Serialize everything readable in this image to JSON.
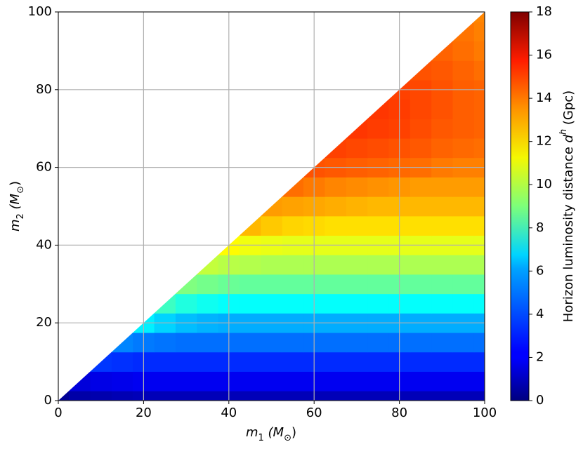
{
  "chart_data": {
    "type": "heatmap",
    "xlabel": [
      "m",
      "1",
      " (M",
      "⊙",
      ")"
    ],
    "ylabel": [
      "m",
      "2",
      " (M",
      "⊙",
      ")"
    ],
    "colorbar_label": [
      "Horizon luminosity distance ",
      "d",
      "h",
      " (Gpc)"
    ],
    "colormap": "jet",
    "grid": true,
    "xlim": [
      0,
      100
    ],
    "xticks": [
      0,
      20,
      40,
      60,
      80,
      100
    ],
    "ylim": [
      0,
      100
    ],
    "yticks": [
      0,
      20,
      40,
      60,
      80,
      100
    ],
    "clim": [
      0,
      18
    ],
    "cticks": [
      0,
      2,
      4,
      6,
      8,
      10,
      12,
      14,
      16,
      18
    ],
    "x": [
      0,
      5,
      10,
      15,
      20,
      25,
      30,
      35,
      40,
      45,
      50,
      55,
      60,
      65,
      70,
      75,
      80,
      85,
      90,
      95,
      100
    ],
    "y": [
      0,
      5,
      10,
      15,
      20,
      25,
      30,
      35,
      40,
      45,
      50,
      55,
      60,
      65,
      70,
      75,
      80,
      85,
      90,
      95,
      100
    ],
    "values": [
      [
        0.4,
        0.7,
        0.8,
        0.9,
        1.0,
        1.0,
        1.0,
        1.0,
        1.0,
        1.0,
        1.0,
        1.0,
        1.0,
        1.0,
        1.0,
        1.0,
        1.0,
        1.0,
        1.0,
        1.0,
        1.0
      ],
      [
        null,
        1.6,
        1.8,
        1.9,
        2.0,
        2.0,
        2.0,
        2.0,
        2.0,
        2.0,
        2.0,
        2.0,
        2.0,
        2.0,
        2.0,
        2.0,
        2.0,
        2.0,
        2.0,
        2.0,
        2.0
      ],
      [
        null,
        null,
        3.2,
        3.1,
        3.0,
        3.0,
        3.0,
        3.0,
        3.0,
        3.0,
        3.0,
        3.0,
        3.0,
        3.0,
        3.0,
        3.0,
        3.0,
        3.0,
        3.0,
        3.0,
        3.0
      ],
      [
        null,
        null,
        null,
        4.6,
        4.4,
        4.3,
        4.2,
        4.2,
        4.2,
        4.2,
        4.2,
        4.2,
        4.2,
        4.2,
        4.2,
        4.2,
        4.2,
        4.2,
        4.2,
        4.2,
        4.2
      ],
      [
        null,
        null,
        null,
        null,
        6.5,
        6.0,
        5.6,
        5.4,
        5.3,
        5.3,
        5.3,
        5.3,
        5.3,
        5.3,
        5.3,
        5.3,
        5.3,
        5.3,
        5.3,
        5.3,
        5.3
      ],
      [
        null,
        null,
        null,
        null,
        null,
        7.8,
        7.3,
        7.0,
        6.8,
        6.8,
        6.8,
        6.8,
        6.8,
        6.8,
        6.8,
        6.8,
        6.8,
        6.8,
        6.8,
        6.8,
        6.8
      ],
      [
        null,
        null,
        null,
        null,
        null,
        null,
        9.0,
        8.8,
        8.6,
        8.5,
        8.5,
        8.5,
        8.5,
        8.5,
        8.5,
        8.5,
        8.5,
        8.5,
        8.5,
        8.5,
        8.5
      ],
      [
        null,
        null,
        null,
        null,
        null,
        null,
        null,
        10.2,
        10.0,
        9.9,
        9.8,
        9.8,
        9.8,
        9.8,
        9.8,
        9.8,
        9.8,
        9.8,
        9.8,
        9.8,
        9.8
      ],
      [
        null,
        null,
        null,
        null,
        null,
        null,
        null,
        null,
        11.3,
        11.0,
        10.9,
        10.8,
        10.8,
        10.8,
        10.8,
        10.8,
        10.8,
        10.8,
        10.8,
        10.8,
        10.8
      ],
      [
        null,
        null,
        null,
        null,
        null,
        null,
        null,
        null,
        null,
        12.5,
        12.2,
        12.0,
        11.9,
        11.8,
        11.8,
        11.8,
        11.8,
        11.8,
        11.8,
        11.8,
        11.8
      ],
      [
        null,
        null,
        null,
        null,
        null,
        null,
        null,
        null,
        null,
        null,
        13.0,
        12.9,
        12.8,
        12.7,
        12.6,
        12.5,
        12.5,
        12.5,
        12.5,
        12.5,
        12.5
      ],
      [
        null,
        null,
        null,
        null,
        null,
        null,
        null,
        null,
        null,
        null,
        null,
        13.8,
        13.6,
        13.4,
        13.3,
        13.2,
        13.1,
        13.0,
        13.0,
        13.0,
        13.0
      ],
      [
        null,
        null,
        null,
        null,
        null,
        null,
        null,
        null,
        null,
        null,
        null,
        null,
        14.3,
        14.2,
        14.1,
        14.0,
        13.9,
        13.8,
        13.6,
        13.5,
        13.5
      ],
      [
        null,
        null,
        null,
        null,
        null,
        null,
        null,
        null,
        null,
        null,
        null,
        null,
        null,
        14.6,
        14.5,
        14.4,
        14.3,
        14.2,
        14.0,
        13.9,
        13.8
      ],
      [
        null,
        null,
        null,
        null,
        null,
        null,
        null,
        null,
        null,
        null,
        null,
        null,
        null,
        null,
        14.8,
        14.7,
        14.6,
        14.4,
        14.2,
        14.1,
        14.0
      ],
      [
        null,
        null,
        null,
        null,
        null,
        null,
        null,
        null,
        null,
        null,
        null,
        null,
        null,
        null,
        null,
        14.8,
        14.7,
        14.5,
        14.3,
        14.1,
        14.0
      ],
      [
        null,
        null,
        null,
        null,
        null,
        null,
        null,
        null,
        null,
        null,
        null,
        null,
        null,
        null,
        null,
        null,
        14.6,
        14.5,
        14.3,
        14.1,
        14.0
      ],
      [
        null,
        null,
        null,
        null,
        null,
        null,
        null,
        null,
        null,
        null,
        null,
        null,
        null,
        null,
        null,
        null,
        null,
        14.3,
        14.2,
        14.0,
        13.8
      ],
      [
        null,
        null,
        null,
        null,
        null,
        null,
        null,
        null,
        null,
        null,
        null,
        null,
        null,
        null,
        null,
        null,
        null,
        null,
        14.0,
        13.8,
        13.6
      ],
      [
        null,
        null,
        null,
        null,
        null,
        null,
        null,
        null,
        null,
        null,
        null,
        null,
        null,
        null,
        null,
        null,
        null,
        null,
        null,
        13.7,
        13.5
      ],
      [
        null,
        null,
        null,
        null,
        null,
        null,
        null,
        null,
        null,
        null,
        null,
        null,
        null,
        null,
        null,
        null,
        null,
        null,
        null,
        null,
        13.4
      ]
    ]
  }
}
